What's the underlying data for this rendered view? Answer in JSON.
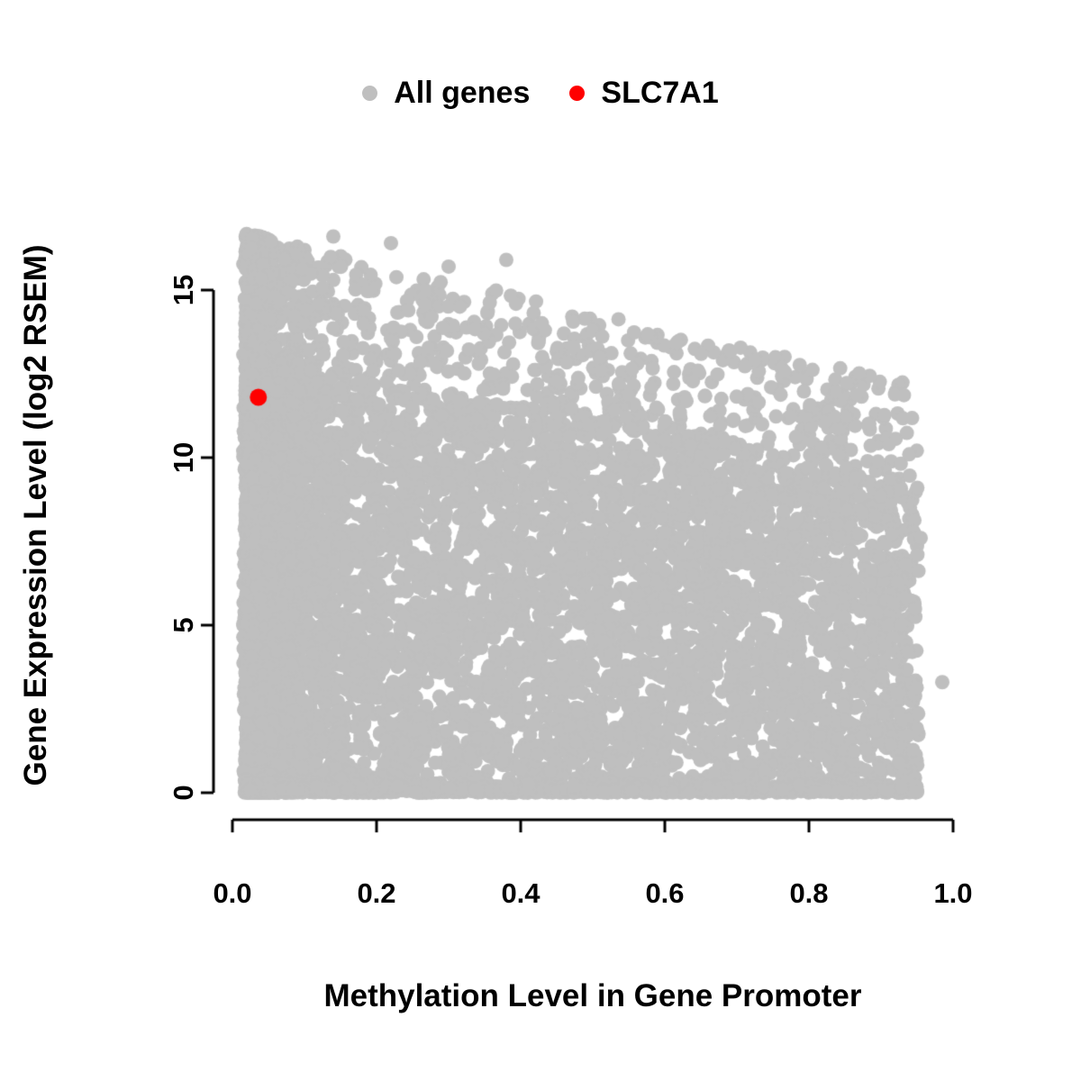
{
  "figure": {
    "background": "#ffffff"
  },
  "chart_data": {
    "type": "scatter",
    "title": "",
    "xlabel": "Methylation Level in Gene Promoter",
    "ylabel": "Gene Expression Level (log2 RSEM)",
    "xlim": [
      0,
      1
    ],
    "ylim": [
      0,
      17
    ],
    "x_ticks": [
      0,
      0.2,
      0.4,
      0.6,
      0.8,
      1.0
    ],
    "x_tick_labels": [
      "0.0",
      "0.2",
      "0.4",
      "0.6",
      "0.8",
      "1.0"
    ],
    "y_ticks": [
      0,
      5,
      10,
      15
    ],
    "y_tick_labels": [
      "0",
      "5",
      "10",
      "15"
    ],
    "grid": false,
    "legend_position": "top-center",
    "series": [
      {
        "name": "All genes",
        "color": "#bfbfbf",
        "marker": "circle",
        "point_radius_px": 8,
        "summary": "Dense cloud of ~10000 genes; methylation 0.015-0.95, expression 0-16.8; very dense column at methylation < 0.14; upper envelope of expression declines from ~16.8 at methylation 0 to ~12 at methylation 0.95; dense band of points at expression 0",
        "generation": {
          "seed": 42,
          "n_cloud": 8200,
          "n_baseline": 1400,
          "left_fraction": 0.33,
          "left_start": 0.018,
          "left_scale": 0.03,
          "left_max": 0.14,
          "x_min": 0.015,
          "x_max": 0.952,
          "x_power": 1.1,
          "envelope_start": 16.8,
          "envelope_end": 11.9,
          "top_thin_threshold": 0.78,
          "top_thin_keep": 0.5,
          "baseline_sigma": 0.12
        },
        "outlier_points": [
          [
            0.985,
            3.3
          ],
          [
            0.955,
            7.6
          ],
          [
            0.14,
            16.6
          ],
          [
            0.22,
            16.4
          ],
          [
            0.3,
            15.7
          ],
          [
            0.38,
            15.9
          ]
        ]
      },
      {
        "name": "SLC7A1",
        "color": "#ff0000",
        "marker": "circle",
        "point_radius_px": 9.5,
        "points": [
          [
            0.036,
            11.8
          ]
        ]
      }
    ]
  }
}
